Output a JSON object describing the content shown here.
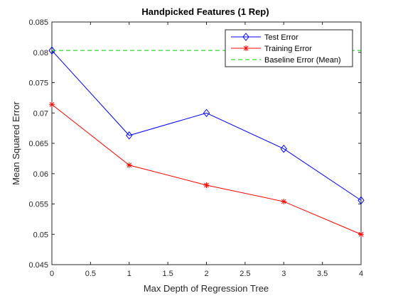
{
  "chart_data": {
    "type": "line",
    "title": "Handpicked Features (1 Rep)",
    "xlabel": "Max Depth of Regression Tree",
    "ylabel": "Mean Squared Error",
    "xlim": [
      0,
      4
    ],
    "ylim": [
      0.045,
      0.085
    ],
    "xticks": [
      "0",
      "0.5",
      "1",
      "1.5",
      "2",
      "2.5",
      "3",
      "3.5",
      "4"
    ],
    "yticks": [
      "0.045",
      "0.05",
      "0.055",
      "0.06",
      "0.065",
      "0.07",
      "0.075",
      "0.08",
      "0.085"
    ],
    "grid": false,
    "legend_position": "top-right",
    "x": [
      0,
      1,
      2,
      3,
      4
    ],
    "series": [
      {
        "name": "Test Error",
        "values": [
          0.0803,
          0.0663,
          0.07,
          0.0641,
          0.0556
        ],
        "color": "#0000ff",
        "marker": "diamond",
        "style": "solid"
      },
      {
        "name": "Training Error",
        "values": [
          0.0714,
          0.0614,
          0.0581,
          0.0554,
          0.05
        ],
        "color": "#ff0000",
        "marker": "asterisk",
        "style": "solid"
      },
      {
        "name": "Baseline Error (Mean)",
        "values": [
          0.0803,
          0.0803
        ],
        "x": [
          0,
          4
        ],
        "color": "#00cc00",
        "marker": "none",
        "style": "dashed"
      }
    ]
  }
}
